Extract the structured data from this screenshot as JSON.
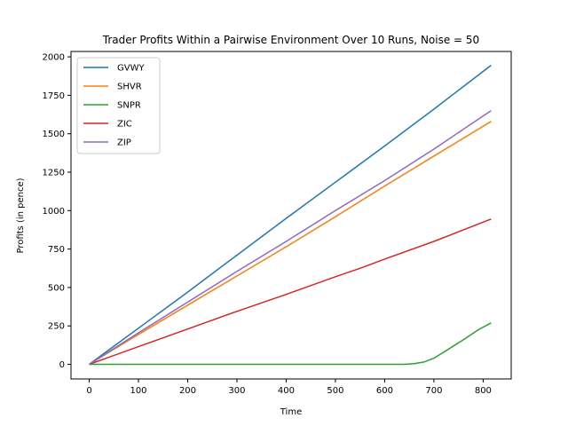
{
  "chart_data": {
    "type": "line",
    "title": "Trader Profits Within a Pairwise Environment Over 10 Runs, Noise = 50",
    "xlabel": "Time",
    "ylabel": "Profits (in pence)",
    "xlim": [
      -37,
      857
    ],
    "ylim": [
      -95,
      2035
    ],
    "xticks": [
      0,
      100,
      200,
      300,
      400,
      500,
      600,
      700,
      800
    ],
    "yticks": [
      0,
      250,
      500,
      750,
      1000,
      1250,
      1500,
      1750,
      2000
    ],
    "grid": false,
    "legend_position": "top-left",
    "series": [
      {
        "name": "GVWY",
        "color": "#1f77b4",
        "x": [
          0,
          100,
          200,
          300,
          400,
          500,
          600,
          700,
          816
        ],
        "y": [
          0,
          235,
          470,
          710,
          950,
          1185,
          1420,
          1660,
          1945
        ]
      },
      {
        "name": "SHVR",
        "color": "#ff7f0e",
        "x": [
          0,
          100,
          200,
          300,
          400,
          500,
          600,
          700,
          816
        ],
        "y": [
          0,
          195,
          385,
          575,
          765,
          960,
          1160,
          1355,
          1580
        ]
      },
      {
        "name": "SNPR",
        "color": "#2ca02c",
        "x": [
          0,
          100,
          200,
          300,
          400,
          500,
          600,
          640,
          660,
          680,
          700,
          720,
          760,
          790,
          816
        ],
        "y": [
          0,
          0,
          0,
          0,
          0,
          0,
          0,
          0,
          5,
          15,
          40,
          80,
          160,
          225,
          270
        ]
      },
      {
        "name": "ZIC",
        "color": "#d62728",
        "x": [
          0,
          100,
          200,
          300,
          400,
          500,
          550,
          600,
          700,
          816
        ],
        "y": [
          0,
          115,
          230,
          345,
          455,
          570,
          625,
          685,
          800,
          945
        ]
      },
      {
        "name": "ZIP",
        "color": "#9467bd",
        "x": [
          0,
          100,
          200,
          300,
          400,
          500,
          600,
          700,
          816
        ],
        "y": [
          0,
          205,
          405,
          605,
          800,
          1000,
          1195,
          1400,
          1650
        ]
      }
    ]
  }
}
